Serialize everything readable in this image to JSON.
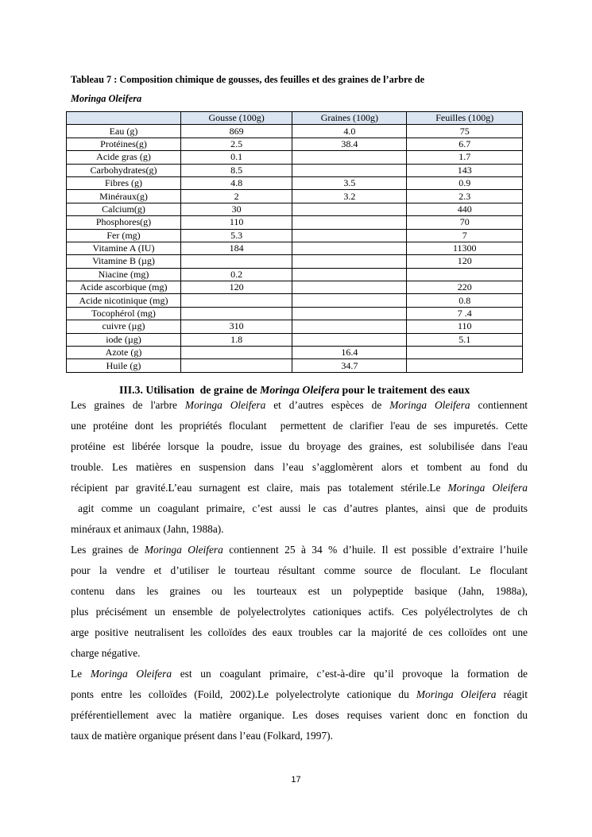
{
  "caption": {
    "line1": "Tableau 7 : Composition chimique de gousses, des feuilles et des graines de l’arbre de",
    "line2": "Moringa Oleifera"
  },
  "table": {
    "header_color": "#dbe5f1",
    "columns": [
      "",
      "Gousse (100g)",
      "Graines (100g)",
      "Feuilles (100g)"
    ],
    "rows": [
      [
        "Eau (g)",
        "869",
        "4.0",
        "75"
      ],
      [
        "Protéines(g)",
        "2.5",
        "38.4",
        "6.7"
      ],
      [
        "Acide gras (g)",
        "0.1",
        "",
        "1.7"
      ],
      [
        "Carbohydrates(g)",
        "8.5",
        "",
        "143"
      ],
      [
        "Fibres (g)",
        "4.8",
        "3.5",
        "0.9"
      ],
      [
        "Minéraux(g)",
        "2",
        "3.2",
        "2.3"
      ],
      [
        "Calcium(g)",
        "30",
        "",
        "440"
      ],
      [
        "Phosphores(g)",
        "110",
        "",
        "70"
      ],
      [
        "Fer (mg)",
        "5.3",
        "",
        "7"
      ],
      [
        "Vitamine A (IU)",
        "184",
        "",
        "11300"
      ],
      [
        "Vitamine B (µg)",
        "",
        "",
        "120"
      ],
      [
        "Niacine (mg)",
        "0.2",
        "",
        ""
      ],
      [
        "Acide ascorbique (mg)",
        "120",
        "",
        "220"
      ],
      [
        "Acide nicotinique (mg)",
        "",
        "",
        "0.8"
      ],
      [
        "Tocophérol (mg)",
        "",
        "",
        "7 .4"
      ],
      [
        "cuivre (µg)",
        "310",
        "",
        "110"
      ],
      [
        "iode (µg)",
        "1.8",
        "",
        "5.1"
      ],
      [
        "Azote (g)",
        "",
        "16.4",
        ""
      ],
      [
        "Huile (g)",
        "",
        "34.7",
        ""
      ]
    ]
  },
  "heading": [
    {
      "t": "III.3. Utilisation  de graine de ",
      "i": false
    },
    {
      "t": "Moringa Oleifera",
      "i": true
    },
    {
      "t": " pour le traitement des eaux",
      "i": false
    }
  ],
  "paragraphs": [
    [
      [
        {
          "t": "Les graines de l'arbre ",
          "i": false
        },
        {
          "t": "Moringa Oleifera",
          "i": true
        },
        {
          "t": " et d’autres espèces de ",
          "i": false
        },
        {
          "t": "Moringa Oleifera",
          "i": true
        },
        {
          "t": " contiennent",
          "i": false
        }
      ],
      [
        {
          "t": "une protéine dont les propriétés floculant  permettent de clarifier l'eau de ses impuretés. Cette",
          "i": false
        }
      ],
      [
        {
          "t": "protéine est libérée lorsque la poudre, issue du broyage des graines, est solubilisée dans l'eau",
          "i": false
        }
      ],
      [
        {
          "t": "trouble. Les matières en suspension dans l’eau s’agglomèrent alors et tombent au fond du",
          "i": false
        }
      ],
      [
        {
          "t": "récipient par gravité.L’eau surnagent est claire, mais pas totalement stérile.Le ",
          "i": false
        },
        {
          "t": "Moringa Oleifera",
          "i": true
        }
      ],
      [
        {
          "t": " agit comme un coagulant primaire, c’est aussi le cas d’autres plantes, ainsi que de produits",
          "i": false
        }
      ],
      [
        {
          "t": "minéraux et animaux (Jahn, 1988a).",
          "i": false
        }
      ]
    ],
    [
      [
        {
          "t": "Les graines de ",
          "i": false
        },
        {
          "t": "Moringa Oleifera",
          "i": true
        },
        {
          "t": " contiennent 25 à 34 % d’huile. Il est possible d’extraire l’huile",
          "i": false
        }
      ],
      [
        {
          "t": "pour la vendre et d’utiliser le tourteau résultant comme source de floculant. Le floculant",
          "i": false
        }
      ],
      [
        {
          "t": "contenu dans les graines ou les tourteaux est un polypeptide basique (Jahn, 1988a),",
          "i": false
        }
      ],
      [
        {
          "t": "plus précisément un ensemble de polyelectrolytes cationiques actifs. Ces polyélectrolytes de ch",
          "i": false
        }
      ],
      [
        {
          "t": "arge positive neutralisent les colloïdes des eaux troubles car la majorité de ces colloïdes ont une",
          "i": false
        }
      ],
      [
        {
          "t": "charge négative.",
          "i": false
        }
      ]
    ],
    [
      [
        {
          "t": "Le ",
          "i": false
        },
        {
          "t": "Moringa Oleifera",
          "i": true
        },
        {
          "t": " est un coagulant primaire, c’est-à-dire qu’il provoque la formation de",
          "i": false
        }
      ],
      [
        {
          "t": "ponts entre les colloïdes (Foild, 2002).Le polyelectrolyte cationique du ",
          "i": false
        },
        {
          "t": "Moringa Oleifera",
          "i": true
        },
        {
          "t": " réagit",
          "i": false
        }
      ],
      [
        {
          "t": "préférentiellement avec la matière organique. Les doses requises varient donc en fonction du",
          "i": false
        }
      ],
      [
        {
          "t": "taux de matière organique présent dans l’eau (Folkard, 1997).",
          "i": false
        }
      ]
    ]
  ],
  "page_number": "17"
}
